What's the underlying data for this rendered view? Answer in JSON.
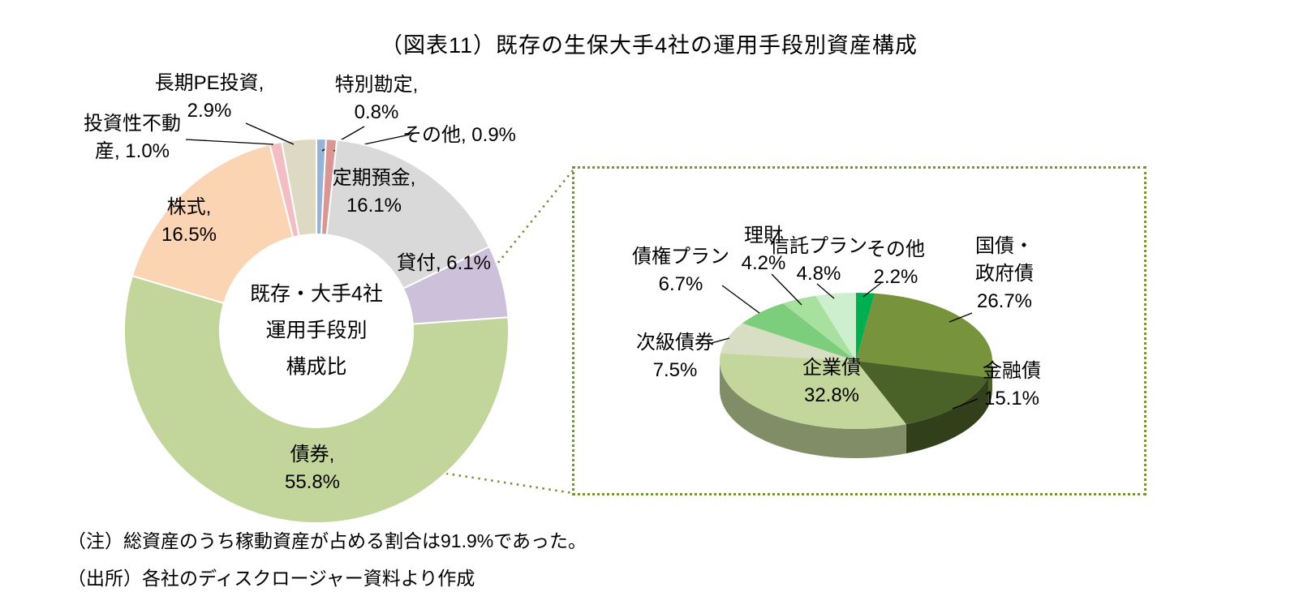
{
  "title": "（図表11）既存の生保大手4社の運用手段別資産構成",
  "notes": [
    "（注）総資産のうち稼動資産が占める割合は91.9%であった。",
    "（出所）各社のディスクロージャー資料より作成"
  ],
  "accent_color": "#76923C",
  "chart_data": [
    {
      "type": "pie",
      "variant": "donut",
      "id": "main-donut",
      "unit": "%",
      "start_angle_deg": 0,
      "direction": "clockwise",
      "center_label_lines": [
        "既存・大手4社",
        "運用手段別",
        "構成比"
      ],
      "slices": [
        {
          "name": "特別勘定",
          "value": 0.8,
          "color": "#95B3D7",
          "label": [
            "特別勘定,",
            "0.8%"
          ]
        },
        {
          "name": "その他",
          "value": 0.9,
          "color": "#D99694",
          "label": [
            "その他, 0.9%"
          ]
        },
        {
          "name": "定期預金",
          "value": 16.1,
          "color": "#D9D9D9",
          "label": [
            "定期預金,",
            "16.1%"
          ]
        },
        {
          "name": "貸付",
          "value": 6.1,
          "color": "#CCC0DA",
          "label": [
            "貸付, 6.1%"
          ]
        },
        {
          "name": "債券",
          "value": 55.8,
          "color": "#C2D69B",
          "label": [
            "債券,",
            "55.8%"
          ]
        },
        {
          "name": "株式",
          "value": 16.5,
          "color": "#FBD4B4",
          "label": [
            "株式,",
            "16.5%"
          ]
        },
        {
          "name": "投資性不動産",
          "value": 1.0,
          "color": "#F2BDC3",
          "label": [
            "投資性不動",
            "産, 1.0%"
          ]
        },
        {
          "name": "長期PE投資",
          "value": 2.9,
          "color": "#DDD9C3",
          "label": [
            "長期PE投資,",
            "2.9%"
          ]
        }
      ]
    },
    {
      "type": "pie",
      "variant": "pie-3d",
      "id": "bond-breakdown",
      "unit": "%",
      "start_angle_deg": 0,
      "direction": "clockwise",
      "slices": [
        {
          "name": "その他",
          "value": 2.2,
          "color": "#00B050",
          "label": [
            "その他",
            "2.2%"
          ]
        },
        {
          "name": "国債・政府債",
          "value": 26.7,
          "color": "#77933C",
          "label": [
            "国債・",
            "政府債",
            "26.7%"
          ]
        },
        {
          "name": "金融債",
          "value": 15.1,
          "color": "#4A6128",
          "label": [
            "金融債",
            "15.1%"
          ]
        },
        {
          "name": "企業債",
          "value": 32.8,
          "color": "#C3D69B",
          "label": [
            "企業債",
            "32.8%"
          ]
        },
        {
          "name": "次級債券",
          "value": 7.5,
          "color": "#D8DEC4",
          "label": [
            "次級債券",
            "7.5%"
          ]
        },
        {
          "name": "債権プラン",
          "value": 6.7,
          "color": "#7CCD7C",
          "label": [
            "債権プラン",
            "6.7%"
          ]
        },
        {
          "name": "理財",
          "value": 4.2,
          "color": "#A8E0A0",
          "label": [
            "理財",
            "4.2%"
          ]
        },
        {
          "name": "信託プラン",
          "value": 4.8,
          "color": "#CDEFCD",
          "label": [
            "信託プラン",
            "4.8%"
          ]
        }
      ]
    }
  ]
}
